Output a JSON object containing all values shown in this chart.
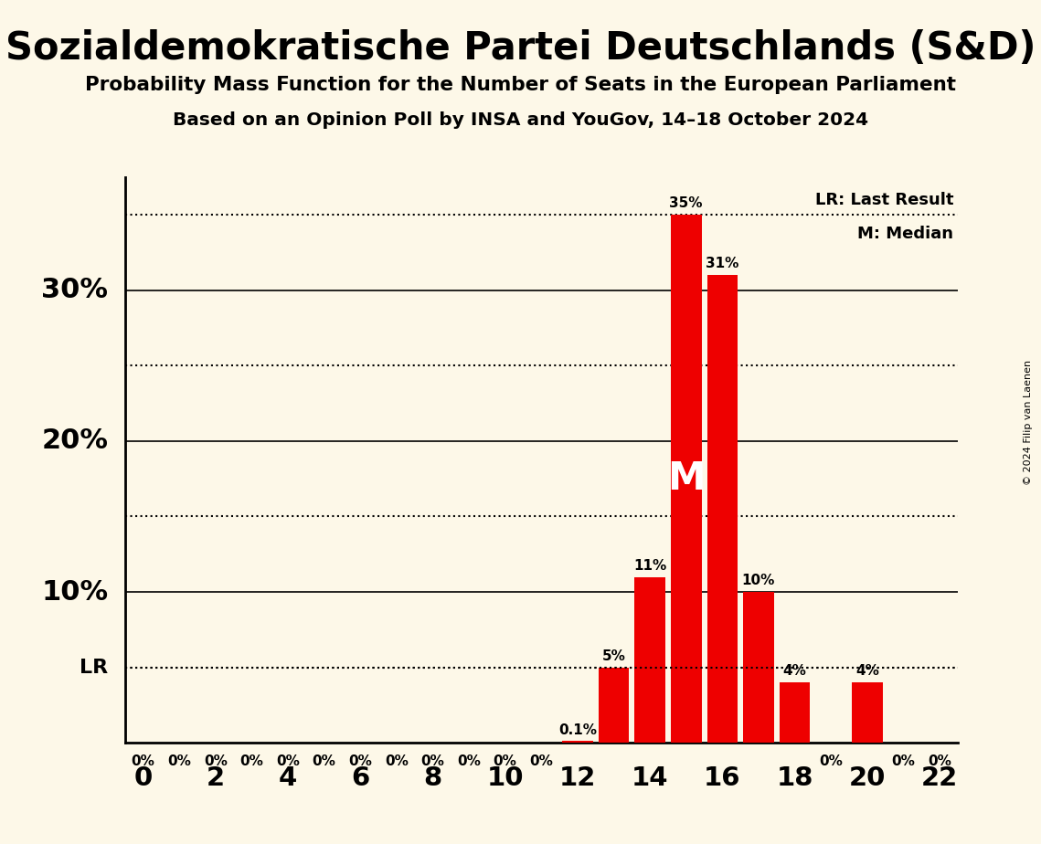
{
  "title": "Sozialdemokratische Partei Deutschlands (S&D)",
  "subtitle1": "Probability Mass Function for the Number of Seats in the European Parliament",
  "subtitle2": "Based on an Opinion Poll by INSA and YouGov, 14–18 October 2024",
  "copyright": "© 2024 Filip van Laenen",
  "seats": [
    0,
    1,
    2,
    3,
    4,
    5,
    6,
    7,
    8,
    9,
    10,
    11,
    12,
    13,
    14,
    15,
    16,
    17,
    18,
    19,
    20,
    21,
    22
  ],
  "probabilities": [
    0,
    0,
    0,
    0,
    0,
    0,
    0,
    0,
    0,
    0,
    0,
    0,
    0.001,
    0.05,
    0.11,
    0.35,
    0.31,
    0.1,
    0.04,
    0,
    0.04,
    0,
    0
  ],
  "bar_labels": [
    "0%",
    "0%",
    "0%",
    "0%",
    "0%",
    "0%",
    "0%",
    "0%",
    "0%",
    "0%",
    "0%",
    "0%",
    "0.1%",
    "5%",
    "11%",
    "35%",
    "31%",
    "10%",
    "4%",
    "0%",
    "4%",
    "0%",
    "0%"
  ],
  "bar_color": "#ee0000",
  "background_color": "#fdf8e8",
  "median_seat": 15,
  "lr_value": 0.05,
  "ytick_solid": [
    0.1,
    0.2,
    0.3
  ],
  "ytick_dotted": [
    0.05,
    0.15,
    0.25,
    0.35
  ],
  "ytick_labels": {
    "0.10": "10%",
    "0.20": "20%",
    "0.30": "30%"
  },
  "ylim": [
    0,
    0.375
  ],
  "xlim": [
    -0.5,
    22.5
  ],
  "xticks": [
    0,
    2,
    4,
    6,
    8,
    10,
    12,
    14,
    16,
    18,
    20,
    22
  ],
  "bar_width": 0.85
}
